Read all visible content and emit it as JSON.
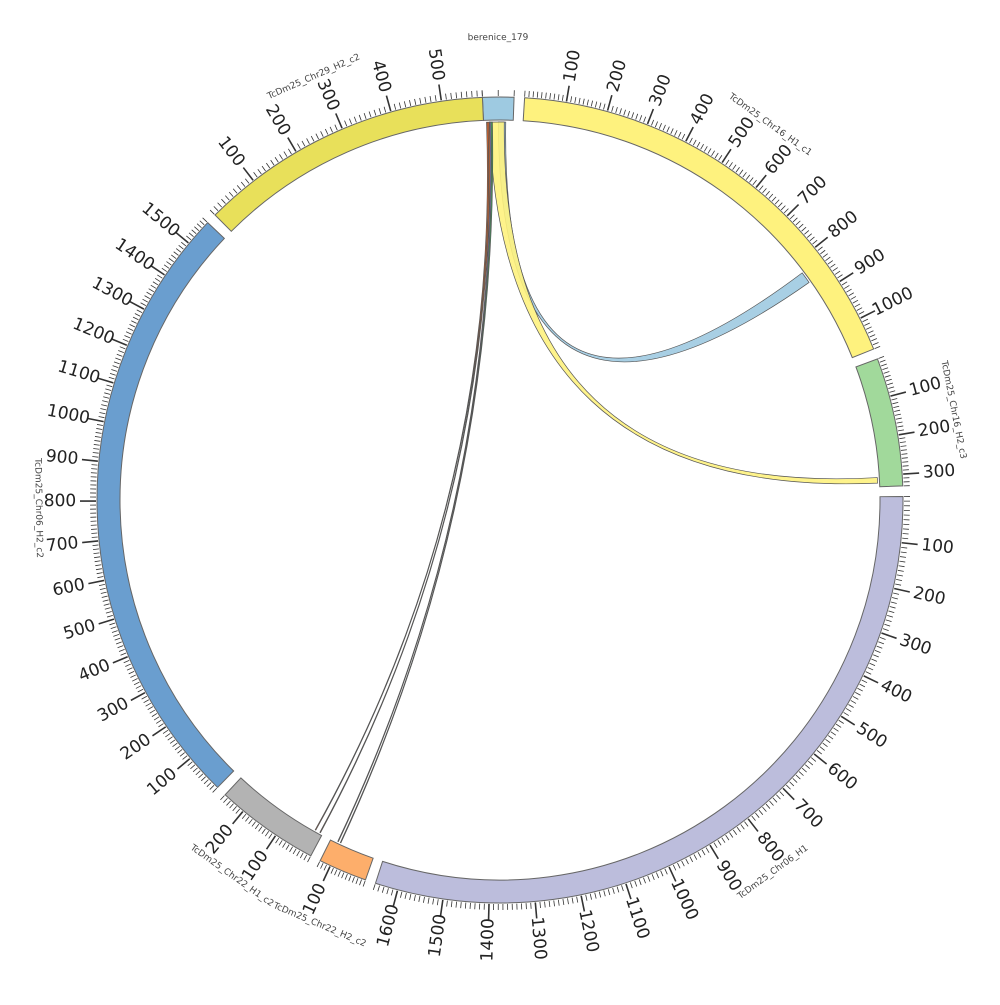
{
  "chart_data": {
    "type": "chord",
    "segments": [
      {
        "id": "berenice",
        "name": "berenice_179",
        "color": "#9ecae1",
        "start_deg": -2.5,
        "end_deg": 2.0,
        "length": 20,
        "labels": []
      },
      {
        "id": "chr16h1",
        "name": "TcDm25_Chr16_H1_c1",
        "color": "#fef27e",
        "start_deg": 3.5,
        "end_deg": 68.0,
        "length": 1080,
        "labels": [
          "100",
          "200",
          "300",
          "400",
          "500",
          "600",
          "700",
          "800",
          "900",
          "1000"
        ]
      },
      {
        "id": "chr16h2",
        "name": "TcDm25_Chr16_H2_c3",
        "color": "#a1d99b",
        "start_deg": 69.5,
        "end_deg": 88.0,
        "length": 330,
        "labels": [
          "100",
          "200",
          "300"
        ]
      },
      {
        "id": "chr06h1",
        "name": "TcDm25_Chr06_H1",
        "color": "#bcbddc",
        "start_deg": 89.5,
        "end_deg": 198.0,
        "length": 1650,
        "labels": [
          "100",
          "200",
          "300",
          "400",
          "500",
          "600",
          "700",
          "800",
          "900",
          "1000",
          "1100",
          "1200",
          "1300",
          "1400",
          "1500",
          "1600"
        ]
      },
      {
        "id": "chr22h2",
        "name": "TcDm25_Chr22_H2_c2",
        "color": "#fdae6b",
        "start_deg": 199.5,
        "end_deg": 206.5,
        "length": 130,
        "labels": [
          "100"
        ]
      },
      {
        "id": "chr22h1",
        "name": "TcDm25_Chr22_H1_c2",
        "color": "#b3b3b3",
        "start_deg": 208.0,
        "end_deg": 223.0,
        "length": 260,
        "labels": [
          "100",
          "200"
        ]
      },
      {
        "id": "chr06h2",
        "name": "TcDm25_Chr06_H2_c2",
        "color": "#6a9ecf",
        "start_deg": 224.5,
        "end_deg": 313.5,
        "length": 1570,
        "labels": [
          "100",
          "200",
          "300",
          "400",
          "500",
          "600",
          "700",
          "800",
          "900",
          "1000",
          "1100",
          "1200",
          "1300",
          "1400",
          "1500"
        ]
      },
      {
        "id": "chr29h2",
        "name": "TcDm25_Chr29_H2_c2",
        "color": "#e8e05a",
        "start_deg": 315.0,
        "end_deg": 357.5,
        "length": 580,
        "labels": [
          "100",
          "200",
          "300",
          "400",
          "500"
        ]
      }
    ],
    "links": [
      {
        "from": "berenice",
        "to": "chr16h1",
        "color": "#9ecae1",
        "from_range": [
          10,
          15
        ],
        "to_range": [
          830,
          860
        ]
      },
      {
        "from": "berenice",
        "to": "chr16h2",
        "color": "#fef27e",
        "from_range": [
          4,
          14
        ],
        "to_range": [
          305,
          320
        ]
      },
      {
        "from": "berenice",
        "to": "chr22h1",
        "color": "#e6550d",
        "from_range": [
          2,
          3
        ],
        "to_range": [
          20,
          22
        ]
      },
      {
        "from": "berenice",
        "to": "chr22h1",
        "color": "#e6550d",
        "from_range": [
          3,
          4
        ],
        "to_range": [
          6,
          8
        ]
      },
      {
        "from": "berenice",
        "to": "chr22h2",
        "color": "#756bb1",
        "from_range": [
          4,
          5
        ],
        "to_range": [
          108,
          110
        ]
      },
      {
        "from": "berenice",
        "to": "chr22h2",
        "color": "#31a354",
        "from_range": [
          5,
          6
        ],
        "to_range": [
          100,
          102
        ]
      }
    ]
  }
}
